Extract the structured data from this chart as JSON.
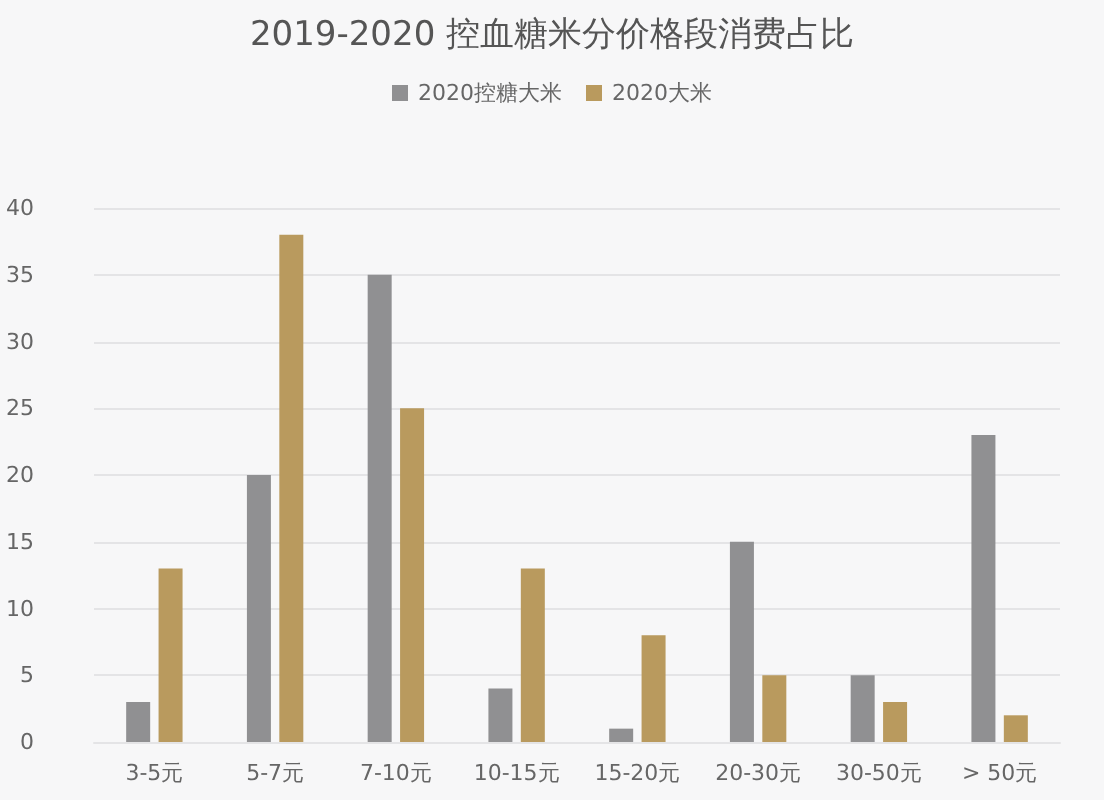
{
  "chart_data": {
    "type": "bar",
    "title": "2019-2020 控血糖米分价格段消费占比",
    "categories": [
      "3-5元",
      "5-7元",
      "7-10元",
      "10-15元",
      "15-20元",
      "20-30元",
      "30-50元",
      "> 50元"
    ],
    "series": [
      {
        "name": "2020控糖大米",
        "color": "#909092",
        "values": [
          3,
          20,
          35,
          4,
          1,
          15,
          5,
          23
        ]
      },
      {
        "name": "2020大米",
        "color": "#b99a5e",
        "values": [
          13,
          38,
          25,
          13,
          8,
          5,
          3,
          2
        ]
      }
    ],
    "ylim": [
      0,
      40
    ],
    "yticks": [
      0,
      5,
      10,
      15,
      20,
      25,
      30,
      35,
      40
    ],
    "grid": "y",
    "legend": "top"
  }
}
